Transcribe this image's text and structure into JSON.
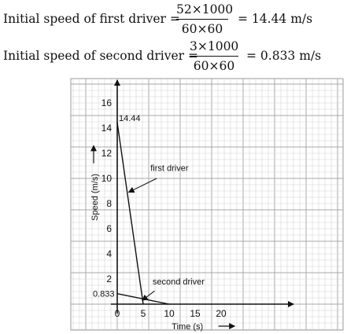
{
  "equations": [
    {
      "lhs": "Initial speed of first driver =",
      "numerator": "52×1000",
      "denominator": "60×60",
      "rhs": "= 14.44 m/s"
    },
    {
      "lhs": "Initial speed of second driver =",
      "numerator": "3×1000",
      "denominator": "60×60",
      "rhs": "= 0.833 m/s"
    }
  ],
  "chart_data": {
    "type": "line",
    "xlabel": "Time (s)",
    "ylabel": "Speed (m/s)",
    "xlim": [
      0,
      35
    ],
    "ylim": [
      0,
      18
    ],
    "x_ticks": [
      0,
      5,
      10,
      15,
      20
    ],
    "y_ticks": [
      2,
      4,
      6,
      8,
      10,
      12,
      14,
      16
    ],
    "grid": true,
    "series": [
      {
        "name": "first driver",
        "x": [
          0,
          5
        ],
        "y": [
          14.44,
          0
        ]
      },
      {
        "name": "second driver",
        "x": [
          0,
          10
        ],
        "y": [
          0.833,
          0
        ]
      }
    ],
    "annotations": [
      {
        "text": "14.44",
        "x": 0,
        "y": 14.44
      },
      {
        "text": "0.833",
        "x": 0,
        "y": 0.833
      },
      {
        "text": "first driver",
        "x": 3,
        "y": 11
      },
      {
        "text": "second driver",
        "x": 5,
        "y": 2
      }
    ]
  }
}
